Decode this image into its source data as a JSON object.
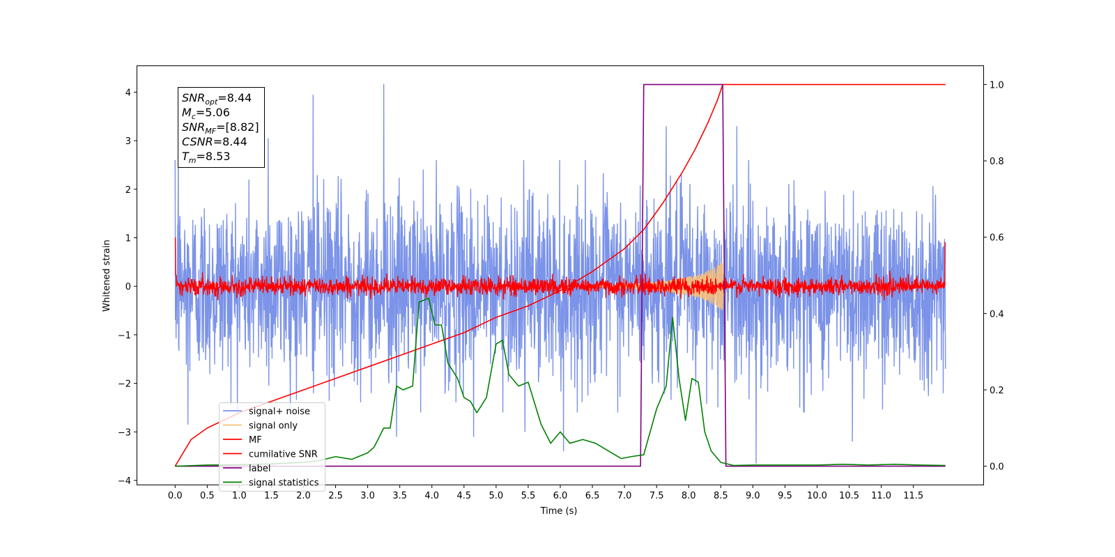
{
  "chart_data": {
    "type": "line",
    "xlabel": "Time (s)",
    "ylabel": "Whitened strain",
    "ylabel_right": "",
    "xlim": [
      -0.6,
      12.6
    ],
    "ylim": [
      -4.1,
      4.55
    ],
    "ylim_right": [
      -0.05,
      1.05
    ],
    "x_ticks": [
      0.0,
      0.5,
      1.0,
      1.5,
      2.0,
      2.5,
      3.0,
      3.5,
      4.0,
      4.5,
      5.0,
      5.5,
      6.0,
      6.5,
      7.0,
      7.5,
      8.0,
      8.5,
      9.0,
      9.5,
      10.0,
      10.5,
      11.0,
      11.5
    ],
    "x_tick_labels": [
      "0.0",
      "0.5",
      "1.0",
      "1.5",
      "2.0",
      "2.5",
      "3.0",
      "3.5",
      "4.0",
      "4.5",
      "5.0",
      "5.5",
      "6.0",
      "6.5",
      "7.0",
      "7.5",
      "8.0",
      "8.5",
      "9.0",
      "9.5",
      "10.0",
      "10.5",
      "11.0",
      "11.5"
    ],
    "y_ticks": [
      -4,
      -3,
      -2,
      -1,
      0,
      1,
      2,
      3,
      4
    ],
    "y_tick_labels": [
      "−4",
      "−3",
      "−2",
      "−1",
      "0",
      "1",
      "2",
      "3",
      "4"
    ],
    "y_ticks_right": [
      0.0,
      0.2,
      0.4,
      0.6,
      0.8,
      1.0
    ],
    "y_tick_labels_right": [
      "0.0",
      "0.2",
      "0.4",
      "0.6",
      "0.8",
      "1.0"
    ],
    "grid": false,
    "legend_position": "lower-left",
    "info_box": [
      {
        "base": "SNR",
        "sub": "opt",
        "rest": "=8.44"
      },
      {
        "base": "M",
        "sub": "c",
        "rest": "=5.06"
      },
      {
        "base": "SNR",
        "sub": "MF",
        "rest": "=[8.82]"
      },
      {
        "base": "CSNR",
        "sub": "",
        "rest": "=8.44"
      },
      {
        "base": "T",
        "sub": "m",
        "rest": "=8.53"
      }
    ],
    "series": [
      {
        "name": "signal+ noise",
        "axis": "left",
        "color": "#7b93e8",
        "style": "noise",
        "x_range": [
          0.0,
          12.0
        ],
        "amplitude_sigma": 0.95,
        "spikes": [
          [
            0.05,
            2.95
          ],
          [
            1.45,
            3.05
          ],
          [
            2.15,
            3.95
          ],
          [
            3.25,
            4.17
          ],
          [
            7.65,
            3.3
          ],
          [
            8.75,
            3.3
          ],
          [
            9.05,
            -3.65
          ],
          [
            10.55,
            -3.2
          ],
          [
            0.2,
            -2.85
          ],
          [
            3.45,
            -3.1
          ],
          [
            4.65,
            -3.1
          ],
          [
            5.45,
            -3.0
          ],
          [
            6.05,
            -3.4
          ]
        ]
      },
      {
        "name": "signal only",
        "axis": "left",
        "color": "#f5c07a",
        "style": "chirp",
        "x_range": [
          6.3,
          8.55
        ],
        "envelope": [
          [
            6.3,
            0.0
          ],
          [
            7.0,
            0.03
          ],
          [
            7.6,
            0.1
          ],
          [
            8.2,
            0.25
          ],
          [
            8.53,
            0.5
          ],
          [
            8.55,
            0.0
          ]
        ]
      },
      {
        "name": "MF",
        "axis": "left",
        "color": "#ff0000",
        "style": "mf",
        "x_range": [
          0.0,
          12.0
        ],
        "edge_spikes": [
          [
            0.0,
            1.0
          ],
          [
            12.0,
            0.9
          ]
        ]
      },
      {
        "name": "cumilative SNR",
        "axis": "right",
        "color": "#ff0000",
        "style": "line",
        "x": [
          0.0,
          0.25,
          0.5,
          1.0,
          1.5,
          2.0,
          2.5,
          3.0,
          3.5,
          4.0,
          4.5,
          5.0,
          5.5,
          6.0,
          6.5,
          7.0,
          7.3,
          7.6,
          7.9,
          8.1,
          8.3,
          8.45,
          8.53,
          8.55,
          12.0
        ],
        "y": [
          0.0,
          0.07,
          0.1,
          0.14,
          0.17,
          0.2,
          0.23,
          0.26,
          0.29,
          0.32,
          0.35,
          0.39,
          0.42,
          0.46,
          0.51,
          0.57,
          0.62,
          0.69,
          0.77,
          0.83,
          0.9,
          0.96,
          1.0,
          1.0,
          1.0
        ]
      },
      {
        "name": "label",
        "axis": "right",
        "color": "#800080",
        "style": "line",
        "x": [
          0.0,
          7.25,
          7.3,
          8.53,
          8.58,
          12.0
        ],
        "y": [
          0.0,
          0.0,
          1.0,
          1.0,
          0.0,
          0.0
        ]
      },
      {
        "name": "signal statistics",
        "axis": "right",
        "color": "#008000",
        "style": "line",
        "x": [
          0.0,
          0.5,
          1.0,
          1.5,
          2.0,
          2.25,
          2.5,
          2.75,
          3.0,
          3.1,
          3.25,
          3.35,
          3.45,
          3.55,
          3.7,
          3.8,
          3.95,
          4.05,
          4.15,
          4.25,
          4.4,
          4.5,
          4.6,
          4.7,
          4.85,
          5.0,
          5.1,
          5.2,
          5.35,
          5.5,
          5.7,
          5.85,
          6.0,
          6.05,
          6.15,
          6.35,
          6.55,
          6.75,
          6.95,
          7.1,
          7.3,
          7.5,
          7.65,
          7.75,
          7.85,
          7.95,
          8.05,
          8.15,
          8.25,
          8.35,
          8.5,
          8.7,
          9.0,
          10.0,
          10.4,
          10.8,
          11.2,
          11.6,
          12.0
        ],
        "y": [
          0.0,
          0.003,
          0.004,
          0.006,
          0.01,
          0.015,
          0.025,
          0.018,
          0.035,
          0.05,
          0.1,
          0.1,
          0.21,
          0.2,
          0.21,
          0.43,
          0.44,
          0.37,
          0.37,
          0.27,
          0.23,
          0.18,
          0.17,
          0.14,
          0.18,
          0.32,
          0.33,
          0.24,
          0.21,
          0.22,
          0.11,
          0.06,
          0.09,
          0.08,
          0.06,
          0.07,
          0.06,
          0.04,
          0.02,
          0.025,
          0.03,
          0.15,
          0.21,
          0.39,
          0.23,
          0.12,
          0.23,
          0.22,
          0.09,
          0.04,
          0.01,
          0.002,
          0.003,
          0.003,
          0.005,
          0.003,
          0.005,
          0.003,
          0.002
        ]
      }
    ]
  }
}
